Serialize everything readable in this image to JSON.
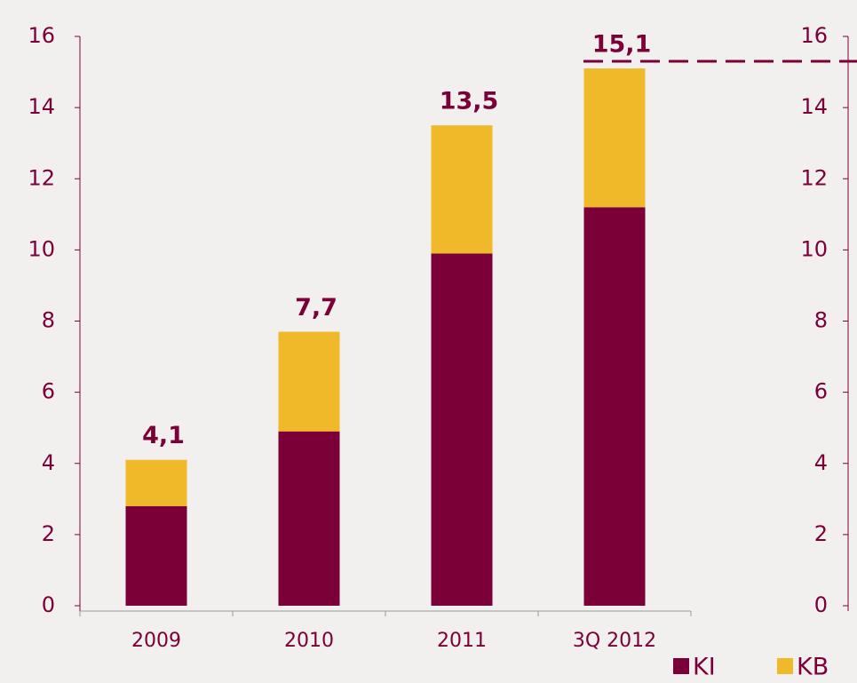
{
  "chart_data": {
    "type": "stacked-bar",
    "categories": [
      "2009",
      "2010",
      "2011",
      "3Q 2012"
    ],
    "series": [
      {
        "name": "KI",
        "color": "#7b0038",
        "values": [
          2.8,
          4.9,
          9.9,
          11.2
        ]
      },
      {
        "name": "KB",
        "color": "#f0b929",
        "values": [
          1.3,
          2.8,
          3.6,
          3.9
        ]
      }
    ],
    "totals": [
      4.1,
      7.7,
      13.5,
      15.1
    ],
    "total_labels": [
      "4,1",
      "7,7",
      "13,5",
      "15,1"
    ],
    "ylim": [
      0,
      16
    ],
    "yticks": [
      0,
      2,
      4,
      6,
      8,
      10,
      12,
      14,
      16
    ],
    "y2lim": [
      0,
      16
    ],
    "y2ticks": [
      0,
      2,
      4,
      6,
      8,
      10,
      12,
      14,
      16
    ],
    "reference_line": {
      "value": 15.3,
      "color": "#7b0038"
    },
    "axis_color": "#7b0038"
  }
}
